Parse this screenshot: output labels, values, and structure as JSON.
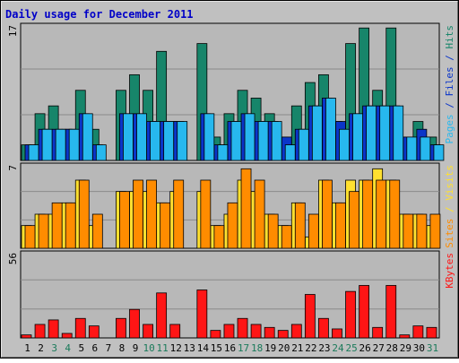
{
  "title": "Daily usage for December 2011",
  "colors": {
    "background": "#c0c0c0",
    "frame_light": "#e4e4e4",
    "frame_dark": "#666666",
    "plot_bg": "#b8b8b8",
    "grid": "#8a8a8a",
    "title": "#0000c8",
    "hits": "#17856a",
    "files": "#0a35c9",
    "pages": "#27b8ee",
    "visits": "#ffe030",
    "sites": "#ff8c00",
    "kbytes": "#ff1515",
    "day_weekday": "#000000",
    "day_weekend": "#1a7a5a"
  },
  "chart_data": {
    "type": "bar",
    "title": "Daily usage for December 2011",
    "x": [
      "1",
      "2",
      "3",
      "4",
      "5",
      "6",
      "7",
      "8",
      "9",
      "10",
      "11",
      "12",
      "13",
      "14",
      "15",
      "16",
      "17",
      "18",
      "19",
      "20",
      "21",
      "22",
      "23",
      "24",
      "25",
      "26",
      "27",
      "28",
      "29",
      "30",
      "31"
    ],
    "weekend_days": [
      3,
      4,
      10,
      11,
      17,
      18,
      24,
      25,
      31
    ],
    "panels": [
      {
        "axis_max_label": "17",
        "ylim": [
          0,
          17.6
        ],
        "label_parts": [
          {
            "text": "Pages",
            "color_key": "pages"
          },
          {
            "text": " / ",
            "color_key": "files"
          },
          {
            "text": "Files",
            "color_key": "files"
          },
          {
            "text": " / ",
            "color_key": "files"
          },
          {
            "text": "Hits",
            "color_key": "hits"
          }
        ],
        "series": [
          {
            "name": "Hits",
            "color_key": "hits",
            "values": [
              2,
              6,
              7,
              4,
              9,
              4,
              0,
              9,
              11,
              9,
              14,
              5,
              0,
              15,
              3,
              6,
              9,
              8,
              6,
              3,
              7,
              10,
              11,
              5,
              15,
              17,
              9,
              17,
              3,
              5,
              3
            ]
          },
          {
            "name": "Files",
            "color_key": "files",
            "values": [
              2,
              4,
              4,
              4,
              6,
              2,
              0,
              6,
              6,
              5,
              5,
              5,
              0,
              6,
              2,
              5,
              6,
              5,
              5,
              3,
              4,
              7,
              8,
              5,
              6,
              7,
              7,
              7,
              3,
              4,
              2
            ]
          },
          {
            "name": "Pages",
            "color_key": "pages",
            "values": [
              2,
              4,
              4,
              4,
              6,
              2,
              0,
              6,
              6,
              5,
              5,
              5,
              0,
              6,
              2,
              5,
              6,
              5,
              5,
              2,
              4,
              7,
              8,
              4,
              6,
              7,
              7,
              7,
              3,
              3,
              2
            ]
          }
        ]
      },
      {
        "axis_max_label": "7",
        "ylim": [
          0,
          7.5
        ],
        "label_parts": [
          {
            "text": "Sites",
            "color_key": "sites"
          },
          {
            "text": " / ",
            "color_key": "visits"
          },
          {
            "text": "Visits",
            "color_key": "visits"
          }
        ],
        "series": [
          {
            "name": "Visits",
            "color_key": "visits",
            "values": [
              2,
              3,
              3,
              4,
              6,
              2,
              0,
              5,
              5,
              5,
              4,
              5,
              0,
              5,
              2,
              3,
              6,
              5,
              3,
              2,
              4,
              1,
              6,
              4,
              6,
              6,
              7,
              6,
              3,
              3,
              2
            ]
          },
          {
            "name": "Sites",
            "color_key": "sites",
            "values": [
              2,
              3,
              4,
              4,
              6,
              3,
              0,
              5,
              6,
              6,
              4,
              6,
              0,
              6,
              2,
              4,
              7,
              6,
              3,
              2,
              4,
              3,
              6,
              4,
              5,
              6,
              6,
              6,
              3,
              3,
              3
            ]
          }
        ]
      },
      {
        "axis_max_label": "56",
        "ylim": [
          0,
          58
        ],
        "label_parts": [
          {
            "text": "KBytes",
            "color_key": "kbytes"
          }
        ],
        "series": [
          {
            "name": "KBytes",
            "color_key": "kbytes",
            "values": [
              2,
              9,
              12,
              3,
              13,
              8,
              0,
              13,
              19,
              9,
              30,
              9,
              0,
              32,
              5,
              9,
              13,
              9,
              7,
              5,
              9,
              29,
              13,
              6,
              31,
              35,
              7,
              35,
              2,
              8,
              7
            ]
          }
        ]
      }
    ]
  }
}
